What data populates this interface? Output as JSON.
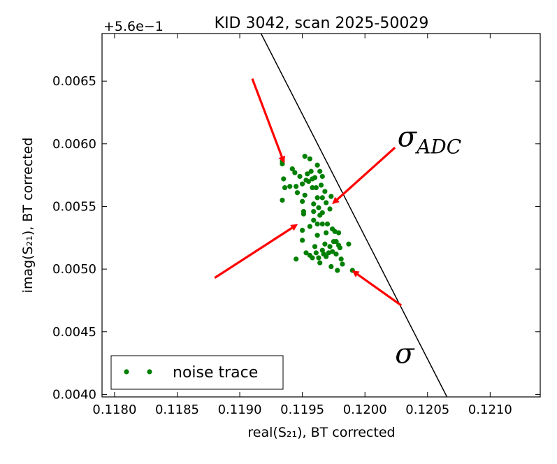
{
  "chart_data": {
    "type": "scatter",
    "title": "KID 3042, scan 2025-50029",
    "xlabel": "real(S₂₁), BT corrected",
    "ylabel": "imag(S₂₁), BT corrected",
    "y_offset_label": "+5.6e−1",
    "xlim": [
      0.1179,
      0.1214
    ],
    "ylim": [
      0.00398,
      0.00688
    ],
    "x_ticks": [
      0.118,
      0.1185,
      0.119,
      0.1195,
      0.12,
      0.1205,
      0.121
    ],
    "x_tick_labels": [
      "0.1180",
      "0.1185",
      "0.1190",
      "0.1195",
      "0.1200",
      "0.1205",
      "0.1210"
    ],
    "y_ticks": [
      0.004,
      0.0045,
      0.005,
      0.0055,
      0.006,
      0.0065
    ],
    "y_tick_labels": [
      "0.0040",
      "0.0045",
      "0.0050",
      "0.0055",
      "0.0060",
      "0.0065"
    ],
    "grid": false,
    "legend": {
      "placement": "lower-left",
      "entries": [
        "noise trace"
      ]
    },
    "colors": {
      "points": "#007f00",
      "line": "#000000",
      "arrows": "#ff0000"
    },
    "line": {
      "points": [
        [
          0.11917,
          0.00688
        ],
        [
          0.120655,
          0.00398
        ]
      ]
    },
    "annotations": [
      {
        "text": "σ",
        "subscript": "ADC",
        "x": 0.12026,
        "y": 0.00598
      },
      {
        "text": "σ",
        "subscript": "",
        "x": 0.12024,
        "y": 0.00425
      }
    ],
    "arrows": [
      {
        "from": [
          0.1191,
          0.00652
        ],
        "to": [
          0.11935,
          0.00586
        ]
      },
      {
        "from": [
          0.12024,
          0.00597
        ],
        "to": [
          0.11975,
          0.00553
        ]
      },
      {
        "from": [
          0.1188,
          0.00493
        ],
        "to": [
          0.11945,
          0.00535
        ]
      },
      {
        "from": [
          0.12029,
          0.00471
        ],
        "to": [
          0.11991,
          0.00498
        ]
      }
    ],
    "series": [
      {
        "name": "noise trace",
        "points": [
          [
            0.11934,
            0.00586
          ],
          [
            0.11934,
            0.00584
          ],
          [
            0.11935,
            0.00572
          ],
          [
            0.11934,
            0.00555
          ],
          [
            0.11936,
            0.00565
          ],
          [
            0.1194,
            0.00566
          ],
          [
            0.11942,
            0.0058
          ],
          [
            0.11944,
            0.00577
          ],
          [
            0.11945,
            0.00566
          ],
          [
            0.11946,
            0.00561
          ],
          [
            0.11948,
            0.00574
          ],
          [
            0.1195,
            0.00568
          ],
          [
            0.1195,
            0.00554
          ],
          [
            0.11951,
            0.00546
          ],
          [
            0.11952,
            0.00559
          ],
          [
            0.11953,
            0.00571
          ],
          [
            0.11952,
            0.0059
          ],
          [
            0.11954,
            0.00576
          ],
          [
            0.11955,
            0.0057
          ],
          [
            0.11956,
            0.00588
          ],
          [
            0.11957,
            0.00578
          ],
          [
            0.11958,
            0.00565
          ],
          [
            0.11959,
            0.00552
          ],
          [
            0.11959,
            0.00546
          ],
          [
            0.1196,
            0.00573
          ],
          [
            0.11961,
            0.00565
          ],
          [
            0.11962,
            0.00557
          ],
          [
            0.11963,
            0.00549
          ],
          [
            0.11964,
            0.00578
          ],
          [
            0.11965,
            0.00567
          ],
          [
            0.11966,
            0.00557
          ],
          [
            0.11966,
            0.00545
          ],
          [
            0.11968,
            0.00562
          ],
          [
            0.11969,
            0.00553
          ],
          [
            0.1195,
            0.00531
          ],
          [
            0.11951,
            0.00544
          ],
          [
            0.11956,
            0.00534
          ],
          [
            0.11959,
            0.00539
          ],
          [
            0.11962,
            0.00536
          ],
          [
            0.11962,
            0.00527
          ],
          [
            0.11964,
            0.00543
          ],
          [
            0.11966,
            0.00536
          ],
          [
            0.11969,
            0.00529
          ],
          [
            0.1197,
            0.00536
          ],
          [
            0.11972,
            0.00548
          ],
          [
            0.11973,
            0.00558
          ],
          [
            0.11974,
            0.00532
          ],
          [
            0.11976,
            0.0053
          ],
          [
            0.11977,
            0.00522
          ],
          [
            0.11979,
            0.00519
          ],
          [
            0.1195,
            0.00523
          ],
          [
            0.11953,
            0.00513
          ],
          [
            0.11956,
            0.00511
          ],
          [
            0.11958,
            0.00509
          ],
          [
            0.1196,
            0.00518
          ],
          [
            0.11961,
            0.00513
          ],
          [
            0.11963,
            0.00509
          ],
          [
            0.11964,
            0.00505
          ],
          [
            0.11966,
            0.00515
          ],
          [
            0.11967,
            0.00512
          ],
          [
            0.11968,
            0.0052
          ],
          [
            0.11969,
            0.0051
          ],
          [
            0.11971,
            0.00513
          ],
          [
            0.11972,
            0.00518
          ],
          [
            0.11973,
            0.00502
          ],
          [
            0.11974,
            0.00514
          ],
          [
            0.11975,
            0.00522
          ],
          [
            0.11977,
            0.00512
          ],
          [
            0.11978,
            0.00499
          ],
          [
            0.11979,
            0.00529
          ],
          [
            0.1198,
            0.00517
          ],
          [
            0.11981,
            0.00508
          ],
          [
            0.11982,
            0.00504
          ],
          [
            0.11987,
            0.0052
          ],
          [
            0.1199,
            0.00499
          ],
          [
            0.11945,
            0.00508
          ],
          [
            0.11958,
            0.00572
          ],
          [
            0.11962,
            0.00583
          ],
          [
            0.11966,
            0.00574
          ]
        ]
      }
    ]
  }
}
